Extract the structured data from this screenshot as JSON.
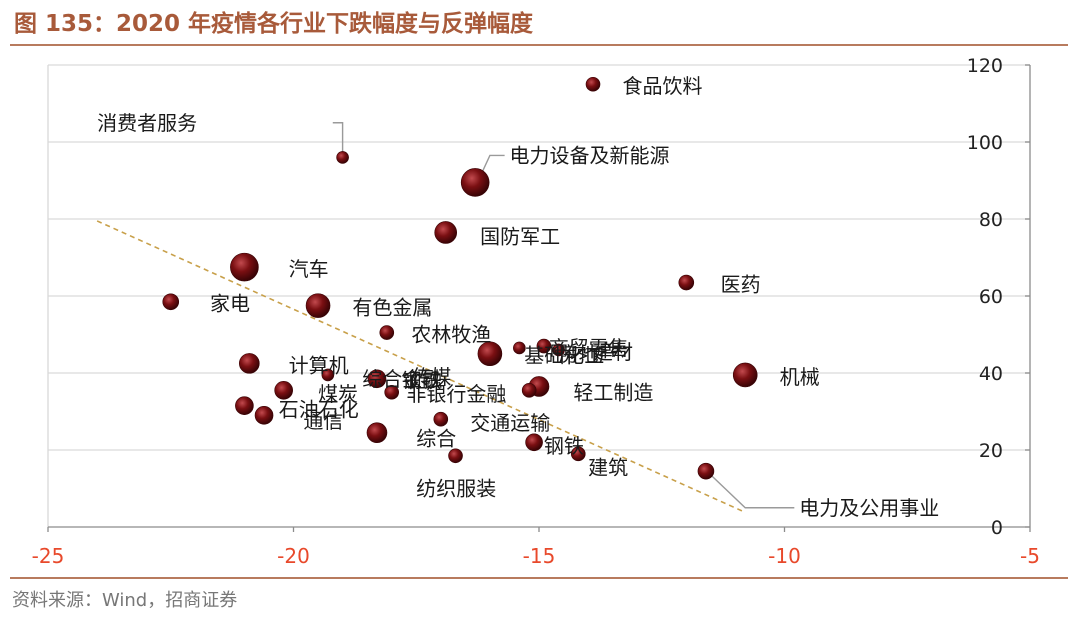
{
  "figure": {
    "title": "图 135：2020 年疫情各行业下跌幅度与反弹幅度",
    "source": "资料来源：Wind，招商证券"
  },
  "colors": {
    "title": "#a85a3a",
    "rule": "#b87b5e",
    "x_tick": "#e8492b",
    "bubble": "#7a0f12",
    "bubble_dark": "#2f0204",
    "trendline": "#c8a04a"
  },
  "chart_data": {
    "type": "scatter",
    "xlim": [
      -25,
      -5
    ],
    "ylim": [
      0,
      120
    ],
    "x_ticks": [
      -25,
      -20,
      -15,
      -10,
      -5
    ],
    "y_ticks": [
      0,
      20,
      40,
      60,
      80,
      100,
      120
    ],
    "y_axis_side": "right",
    "grid": "horizontal",
    "trendline": {
      "style": "dashed",
      "from": [
        -24.0,
        79.5
      ],
      "to": [
        -10.8,
        3.8
      ]
    },
    "points": [
      {
        "name": "食品饮料",
        "x": -13.9,
        "y": 115.0,
        "size": 7
      },
      {
        "name": "消费者服务",
        "x": -19.0,
        "y": 96.0,
        "size": 6
      },
      {
        "name": "电力设备及新能源",
        "x": -16.3,
        "y": 89.5,
        "size": 14
      },
      {
        "name": "国防军工",
        "x": -16.9,
        "y": 76.5,
        "size": 11
      },
      {
        "name": "汽车",
        "x": -21.0,
        "y": 67.5,
        "size": 14
      },
      {
        "name": "医药",
        "x": -12.0,
        "y": 63.5,
        "size": 7.5
      },
      {
        "name": "家电",
        "x": -22.5,
        "y": 58.5,
        "size": 8
      },
      {
        "name": "有色金属",
        "x": -19.5,
        "y": 57.5,
        "size": 12
      },
      {
        "name": "农林牧渔",
        "x": -18.1,
        "y": 50.5,
        "size": 7
      },
      {
        "name": "基础化工",
        "x": -15.4,
        "y": 46.5,
        "size": 6
      },
      {
        "name": "商贸零售",
        "x": -14.9,
        "y": 47.0,
        "size": 7
      },
      {
        "name": "建材",
        "x": -14.6,
        "y": 46.0,
        "size": 6
      },
      {
        "name": "房地产",
        "x": -16.0,
        "y": 45.0,
        "size": 12
      },
      {
        "name": "计算机",
        "x": -20.9,
        "y": 42.5,
        "size": 10
      },
      {
        "name": "机械",
        "x": -10.8,
        "y": 39.5,
        "size": 12
      },
      {
        "name": "传媒",
        "x": -19.3,
        "y": 39.5,
        "size": 6
      },
      {
        "name": "综合金融",
        "x": -18.3,
        "y": 38.5,
        "size": 9
      },
      {
        "name": "钢铁",
        "x": -18.0,
        "y": 35.0,
        "size": 7
      },
      {
        "name": "非银行金融",
        "x": -15.0,
        "y": 36.5,
        "size": 10
      },
      {
        "name": "轻工制造",
        "x": -15.2,
        "y": 35.5,
        "size": 7
      },
      {
        "name": "煤炭",
        "x": -20.2,
        "y": 35.5,
        "size": 9
      },
      {
        "name": "石油石化",
        "x": -21.0,
        "y": 31.5,
        "size": 9
      },
      {
        "name": "通信",
        "x": -20.6,
        "y": 29.0,
        "size": 9
      },
      {
        "name": "交通运输",
        "x": -17.0,
        "y": 28.0,
        "size": 7
      },
      {
        "name": "综合",
        "x": -18.3,
        "y": 24.5,
        "size": 10
      },
      {
        "name": "钢铁",
        "x": -15.1,
        "y": 22.0,
        "size": 8.5
      },
      {
        "name": "纺织服装",
        "x": -16.7,
        "y": 18.5,
        "size": 7
      },
      {
        "name": "建筑",
        "x": -14.2,
        "y": 19.0,
        "size": 7
      },
      {
        "name": "电力及公用事业",
        "x": -11.6,
        "y": 14.5,
        "size": 8
      }
    ],
    "labels": [
      {
        "text": "食品饮料",
        "x": -13.3,
        "y": 114.5
      },
      {
        "text": "消费者服务",
        "x": -24.0,
        "y": 105.0
      },
      {
        "text": "电力设备及新能源",
        "x": -15.6,
        "y": 96.5
      },
      {
        "text": "国防军工",
        "x": -16.2,
        "y": 75.5
      },
      {
        "text": "汽车",
        "x": -20.1,
        "y": 67.0
      },
      {
        "text": "医药",
        "x": -11.3,
        "y": 63.0
      },
      {
        "text": "家电",
        "x": -21.7,
        "y": 58.0
      },
      {
        "text": "有色金属",
        "x": -18.8,
        "y": 57.0
      },
      {
        "text": "农林牧渔",
        "x": -17.6,
        "y": 50.0
      },
      {
        "text": "基础化工",
        "x": -15.3,
        "y": 44.5
      },
      {
        "text": "商贸零售",
        "x": -14.8,
        "y": 46.5
      },
      {
        "text": "建材",
        "x": -13.9,
        "y": 45.5
      },
      {
        "text": "房地产",
        "x": -14.6,
        "y": 45.0
      },
      {
        "text": "计算机",
        "x": -20.1,
        "y": 42.0
      },
      {
        "text": "机械",
        "x": -10.1,
        "y": 39.0
      },
      {
        "text": "传媒",
        "x": -17.6,
        "y": 39.0
      },
      {
        "text": "综合金融",
        "x": -18.6,
        "y": 38.5
      },
      {
        "text": "钢铁",
        "x": -17.8,
        "y": 38.0
      },
      {
        "text": "煤炭",
        "x": -19.5,
        "y": 34.5
      },
      {
        "text": "非银行金融",
        "x": -17.7,
        "y": 34.5
      },
      {
        "text": "轻工制造",
        "x": -14.3,
        "y": 35.0
      },
      {
        "text": "石油石化",
        "x": -20.3,
        "y": 30.5
      },
      {
        "text": "通信",
        "x": -19.8,
        "y": 27.5
      },
      {
        "text": "交通运输",
        "x": -16.4,
        "y": 27.0
      },
      {
        "text": "综合",
        "x": -17.5,
        "y": 23.0
      },
      {
        "text": "钢铁",
        "x": -14.9,
        "y": 21.0
      },
      {
        "text": "纺织服装",
        "x": -17.5,
        "y": 10.0
      },
      {
        "text": "建筑",
        "x": -14.0,
        "y": 15.5
      },
      {
        "text": "电力及公用事业",
        "x": -9.7,
        "y": 5.0
      }
    ],
    "leaders": [
      {
        "from": [
          -19.2,
          105.0
        ],
        "via": [
          -19.0,
          105.0
        ],
        "to": [
          -19.0,
          97.5
        ]
      },
      {
        "from": [
          -15.7,
          96.5
        ],
        "via": [
          -16.0,
          96.5
        ],
        "to": [
          -16.2,
          91.0
        ]
      },
      {
        "from": [
          -9.8,
          5.0
        ],
        "via": [
          -10.8,
          5.0
        ],
        "to": [
          -11.5,
          13.5
        ]
      }
    ]
  }
}
